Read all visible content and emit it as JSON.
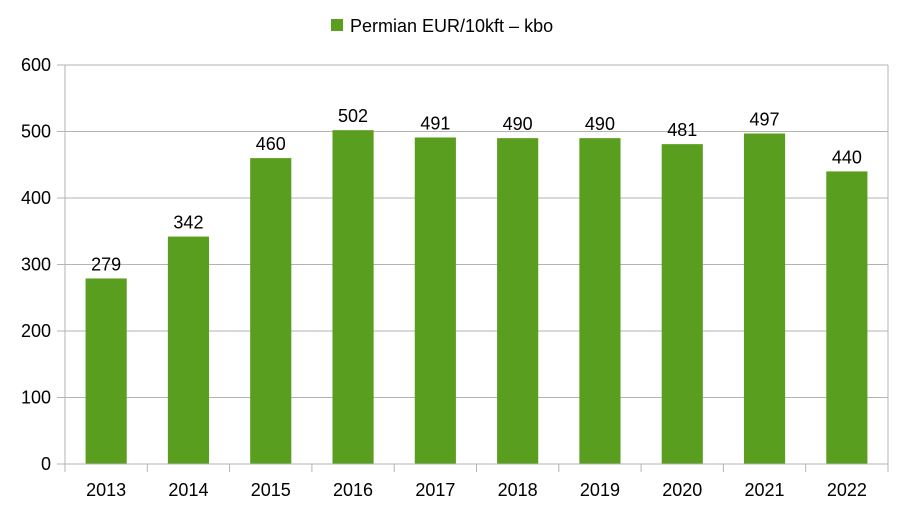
{
  "chart_data": {
    "type": "bar",
    "title": "",
    "xlabel": "",
    "ylabel": "",
    "categories": [
      "2013",
      "2014",
      "2015",
      "2016",
      "2017",
      "2018",
      "2019",
      "2020",
      "2021",
      "2022"
    ],
    "series": [
      {
        "name": "Permian EUR/10kft – kbo",
        "values": [
          279,
          342,
          460,
          502,
          491,
          490,
          490,
          481,
          497,
          440
        ],
        "color": "#5a9e1f"
      }
    ],
    "ylim": [
      0,
      600
    ],
    "yticks": [
      0,
      100,
      200,
      300,
      400,
      500,
      600
    ],
    "data_labels": true,
    "grid": true,
    "legend_position": "top"
  }
}
